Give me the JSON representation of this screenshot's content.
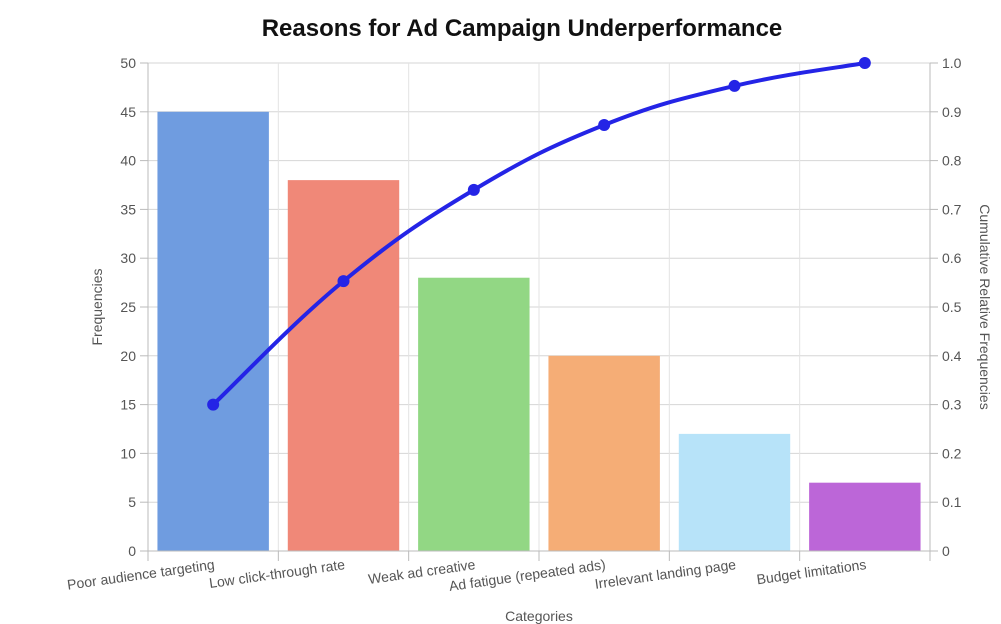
{
  "chart_data": {
    "type": "bar",
    "title": "Reasons for Ad Campaign Underperformance",
    "xlabel": "Categories",
    "ylabel": "Frequencies",
    "y2label": "Cumulative Relative Frequencies",
    "categories": [
      "Poor audience targeting",
      "Low click-through rate",
      "Weak ad creative",
      "Ad fatigue (repeated ads)",
      "Irrelevant landing page",
      "Budget limitations"
    ],
    "series": [
      {
        "name": "Frequencies",
        "type": "bar",
        "axis": "left",
        "values": [
          45,
          38,
          28,
          20,
          12,
          7
        ],
        "colors": [
          "#6f9ce0",
          "#f08878",
          "#92d784",
          "#f5ad76",
          "#b7e3f9",
          "#bc66d8"
        ]
      },
      {
        "name": "Cumulative Relative Frequencies",
        "type": "line",
        "axis": "right",
        "values": [
          0.3,
          0.553,
          0.74,
          0.873,
          0.953,
          1.0
        ],
        "color": "#2424e6"
      }
    ],
    "ylim": [
      0,
      50
    ],
    "yticks": [
      "0",
      "5",
      "10",
      "15",
      "20",
      "25",
      "30",
      "35",
      "40",
      "45",
      "50"
    ],
    "y2lim": [
      0,
      1
    ],
    "y2ticks": [
      "0",
      "0.1",
      "0.2",
      "0.3",
      "0.4",
      "0.5",
      "0.6",
      "0.7",
      "0.8",
      "0.9",
      "1.0"
    ],
    "grid": true,
    "legend": "none"
  }
}
